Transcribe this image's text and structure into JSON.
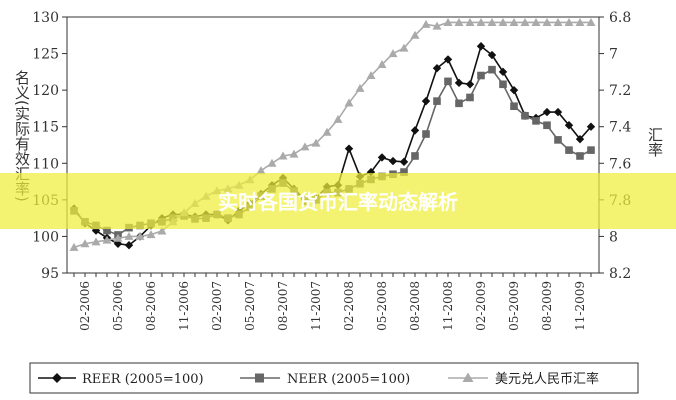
{
  "chart_data": {
    "type": "line",
    "title": "",
    "overlay_title": "实时各国货币汇率动态解析",
    "ylabel_left": "名义(实际有效汇率)",
    "ylabel_right": "汇率",
    "ylim_left": [
      95,
      130
    ],
    "ylim_right": [
      8.2,
      6.8
    ],
    "yticks_left": [
      "95",
      "100",
      "105",
      "110",
      "115",
      "120",
      "125",
      "130"
    ],
    "yticks_right": [
      "6.8",
      "7",
      "7.2",
      "7.4",
      "7.6",
      "7.8",
      "8",
      "8.2"
    ],
    "x_tick_labels": [
      "02-2006",
      "05-2006",
      "08-2006",
      "11-2006",
      "02-2007",
      "05-2007",
      "08-2007",
      "11-2007",
      "02-2008",
      "05-2008",
      "08-2008",
      "11-2008",
      "02-2009",
      "05-2009",
      "08-2009",
      "11-2009"
    ],
    "x": [
      "2006-01",
      "2006-02",
      "2006-03",
      "2006-04",
      "2006-05",
      "2006-06",
      "2006-07",
      "2006-08",
      "2006-09",
      "2006-10",
      "2006-11",
      "2006-12",
      "2007-01",
      "2007-02",
      "2007-03",
      "2007-04",
      "2007-05",
      "2007-06",
      "2007-07",
      "2007-08",
      "2007-09",
      "2007-10",
      "2007-11",
      "2007-12",
      "2008-01",
      "2008-02",
      "2008-03",
      "2008-04",
      "2008-05",
      "2008-06",
      "2008-07",
      "2008-08",
      "2008-09",
      "2008-10",
      "2008-11",
      "2008-12",
      "2009-01",
      "2009-02",
      "2009-03",
      "2009-04",
      "2009-05",
      "2009-06",
      "2009-07",
      "2009-08",
      "2009-09",
      "2009-10",
      "2009-11",
      "2009-12"
    ],
    "series": [
      {
        "name": "REER (2005=100)",
        "axis": "left",
        "color": "#111111",
        "marker": "diamond",
        "values": [
          103.8,
          101.8,
          100.8,
          99.8,
          99.0,
          98.8,
          100.0,
          101.5,
          102.5,
          103.0,
          103.0,
          102.7,
          103.0,
          103.0,
          102.2,
          103.5,
          104.5,
          105.8,
          107.0,
          108.0,
          106.5,
          105.0,
          105.2,
          106.8,
          107.0,
          112.0,
          108.2,
          108.8,
          110.8,
          110.3,
          110.2,
          114.5,
          118.5,
          123.0,
          124.2,
          121.0,
          120.8,
          126.0,
          124.8,
          122.5,
          120.0,
          116.5,
          116.2,
          117.0,
          117.0,
          115.2,
          113.3,
          115.0
        ]
      },
      {
        "name": "NEER (2005=100)",
        "axis": "left",
        "color": "#666666",
        "marker": "square",
        "values": [
          103.5,
          102.0,
          101.5,
          100.8,
          100.2,
          101.2,
          101.5,
          101.8,
          102.0,
          102.5,
          102.8,
          102.4,
          102.5,
          103.0,
          102.5,
          103.0,
          104.0,
          105.5,
          106.5,
          107.3,
          106.2,
          104.8,
          105.0,
          106.0,
          106.0,
          106.5,
          107.2,
          107.8,
          108.2,
          108.5,
          108.8,
          111.0,
          114.0,
          118.5,
          121.2,
          118.2,
          119.0,
          122.0,
          122.8,
          120.8,
          117.8,
          116.5,
          115.8,
          115.2,
          113.2,
          111.8,
          111.0,
          111.8
        ]
      },
      {
        "name": "美元兑人民币汇率",
        "axis": "right",
        "color": "#aaaaaa",
        "marker": "triangle",
        "values": [
          8.06,
          8.04,
          8.03,
          8.02,
          8.01,
          8.0,
          8.0,
          7.99,
          7.97,
          7.92,
          7.87,
          7.82,
          7.78,
          7.75,
          7.74,
          7.72,
          7.69,
          7.64,
          7.6,
          7.56,
          7.55,
          7.51,
          7.49,
          7.43,
          7.36,
          7.27,
          7.19,
          7.12,
          7.06,
          7.0,
          6.97,
          6.9,
          6.84,
          6.85,
          6.83,
          6.83,
          6.83,
          6.83,
          6.83,
          6.83,
          6.83,
          6.83,
          6.83,
          6.83,
          6.83,
          6.83,
          6.83,
          6.83
        ]
      }
    ],
    "legend_position": "bottom",
    "grid": false
  }
}
